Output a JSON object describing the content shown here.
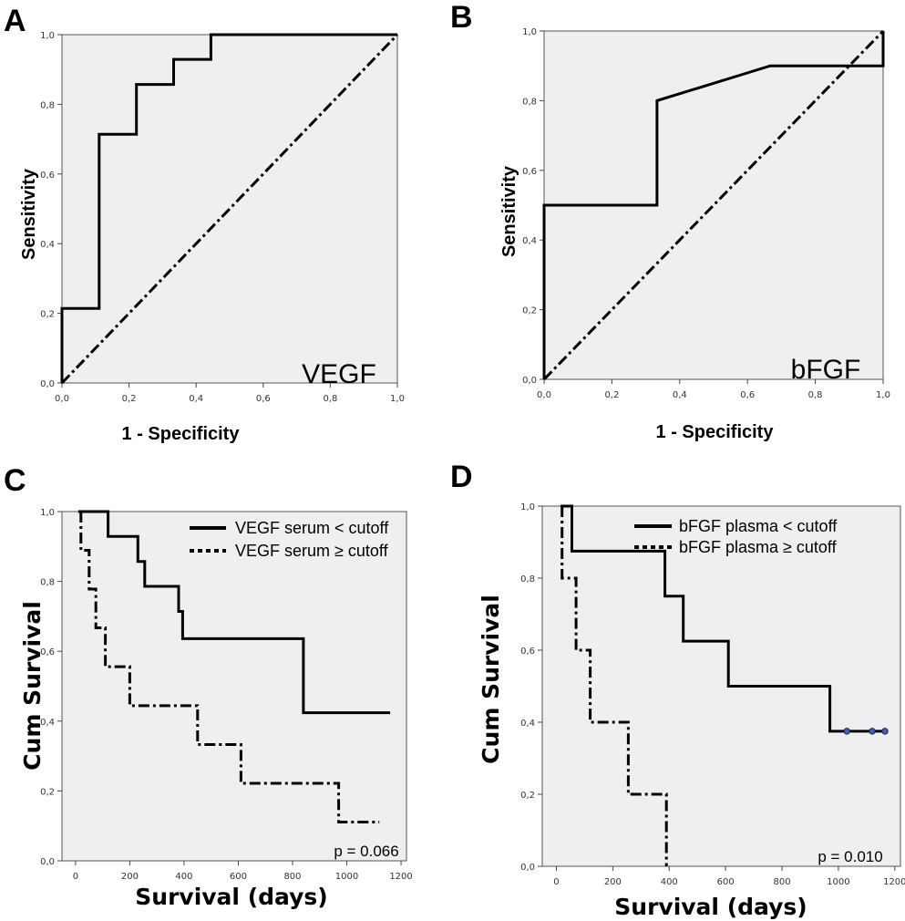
{
  "chart_data": [
    {
      "panel": "A",
      "type": "line",
      "inset_label": "VEGF",
      "xlabel": "1 - Specificity",
      "ylabel": "Sensitivity",
      "xlim": [
        0,
        1
      ],
      "ylim": [
        0,
        1
      ],
      "x_ticks": [
        "0,0",
        "0,2",
        "0,4",
        "0,6",
        "0,8",
        "1,0"
      ],
      "y_ticks": [
        "0,0",
        "0,2",
        "0,4",
        "0,6",
        "0,8",
        "1,0"
      ],
      "series": [
        {
          "style": "solid",
          "x": [
            0,
            0,
            0.111,
            0.111,
            0.222,
            0.222,
            0.333,
            0.333,
            0.444,
            0.444,
            1.0
          ],
          "y": [
            0,
            0.214,
            0.214,
            0.714,
            0.714,
            0.857,
            0.857,
            0.929,
            0.929,
            1.0,
            1.0
          ]
        },
        {
          "style": "dash-dot",
          "x": [
            0,
            1
          ],
          "y": [
            0,
            1
          ]
        }
      ]
    },
    {
      "panel": "B",
      "type": "line",
      "inset_label": "bFGF",
      "xlabel": "1 - Specificity",
      "ylabel": "Sensitivity",
      "xlim": [
        0,
        1
      ],
      "ylim": [
        0,
        1
      ],
      "x_ticks": [
        "0,0",
        "0,2",
        "0,4",
        "0,6",
        "0,8",
        "1,0"
      ],
      "y_ticks": [
        "0,0",
        "0,2",
        "0,4",
        "0,6",
        "0,8",
        "1,0"
      ],
      "series": [
        {
          "style": "solid",
          "x": [
            0,
            0,
            0.333,
            0.333,
            0.667,
            1.0,
            1.0
          ],
          "y": [
            0,
            0.5,
            0.5,
            0.8,
            0.9,
            0.9,
            1.0
          ]
        },
        {
          "style": "dash-dot",
          "x": [
            0,
            1
          ],
          "y": [
            0,
            1
          ]
        }
      ]
    },
    {
      "panel": "C",
      "type": "line",
      "xlabel": "Survival (days)",
      "ylabel": "Cum Survival",
      "xlim": [
        -50,
        1220
      ],
      "ylim": [
        0,
        1
      ],
      "x_ticks": [
        0,
        200,
        400,
        600,
        800,
        1000,
        1200
      ],
      "y_ticks": [
        "0,0",
        "0,2",
        "0,4",
        "0,6",
        "0,8",
        "1,0"
      ],
      "pvalue": "p = 0.066",
      "legend": [
        "VEGF serum < cutoff",
        "VEGF serum ≥ cutoff"
      ],
      "series": [
        {
          "name": "VEGF serum < cutoff",
          "style": "solid",
          "x": [
            10,
            120,
            120,
            230,
            230,
            255,
            255,
            380,
            380,
            395,
            395,
            840,
            840,
            1160
          ],
          "y": [
            1.0,
            1.0,
            0.929,
            0.929,
            0.857,
            0.857,
            0.786,
            0.786,
            0.714,
            0.714,
            0.636,
            0.636,
            0.424,
            0.424
          ]
        },
        {
          "name": "VEGF serum ≥ cutoff",
          "style": "dash-dot",
          "x": [
            20,
            20,
            50,
            50,
            75,
            75,
            110,
            110,
            200,
            200,
            450,
            450,
            610,
            610,
            970,
            970,
            1120
          ],
          "y": [
            1.0,
            0.889,
            0.889,
            0.778,
            0.778,
            0.667,
            0.667,
            0.556,
            0.556,
            0.444,
            0.444,
            0.333,
            0.333,
            0.222,
            0.222,
            0.111,
            0.111
          ]
        }
      ]
    },
    {
      "panel": "D",
      "type": "line",
      "xlabel": "Survival (days)",
      "ylabel": "Cum Survival",
      "xlim": [
        -50,
        1220
      ],
      "ylim": [
        0,
        1
      ],
      "x_ticks": [
        0,
        200,
        400,
        600,
        800,
        1000,
        1200
      ],
      "y_ticks": [
        "0,0",
        "0,2",
        "0,4",
        "0,6",
        "0,8",
        "1,0"
      ],
      "pvalue": "p = 0.010",
      "legend": [
        "bFGF plasma < cutoff",
        "bFGF plasma ≥ cutoff"
      ],
      "series": [
        {
          "name": "bFGF plasma < cutoff",
          "style": "solid",
          "x": [
            15,
            55,
            55,
            385,
            385,
            450,
            450,
            610,
            610,
            970,
            970,
            1170
          ],
          "y": [
            1.0,
            1.0,
            0.875,
            0.875,
            0.75,
            0.75,
            0.625,
            0.625,
            0.5,
            0.5,
            0.375,
            0.375
          ],
          "censored_x": [
            1030,
            1120,
            1165
          ],
          "censored_y": [
            0.375,
            0.375,
            0.375
          ]
        },
        {
          "name": "bFGF plasma ≥ cutoff",
          "style": "dash-dot",
          "x": [
            20,
            20,
            70,
            70,
            120,
            120,
            255,
            255,
            390,
            390
          ],
          "y": [
            1.0,
            0.8,
            0.8,
            0.6,
            0.6,
            0.4,
            0.4,
            0.2,
            0.2,
            0.0
          ]
        }
      ]
    }
  ]
}
